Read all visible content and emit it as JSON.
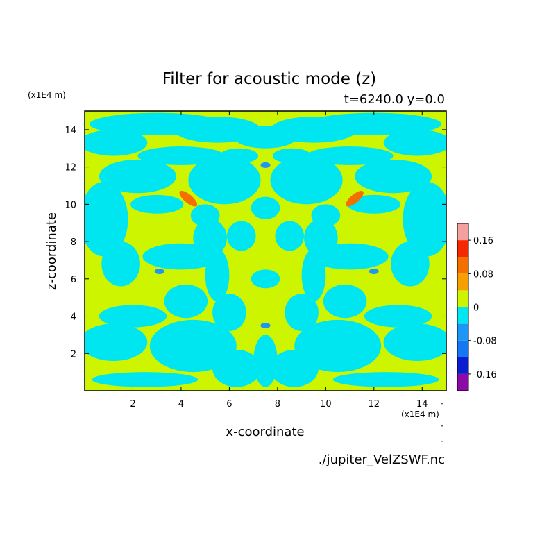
{
  "chart_data": {
    "type": "heatmap",
    "title": "Filter for acoustic mode (z)",
    "subtitle": "t=6240.0 y=0.0",
    "xlabel": "x-coordinate",
    "ylabel": "z-coordinate",
    "x_unit": "(x1E4 m)",
    "y_unit": "(x1E4 m)",
    "xlim": [
      0,
      15
    ],
    "ylim": [
      0,
      15
    ],
    "x_ticks": [
      "2",
      "4",
      "6",
      "8",
      "10",
      "12",
      "14"
    ],
    "y_ticks": [
      "2",
      "4",
      "6",
      "8",
      "10",
      "12",
      "14"
    ],
    "colorbar": {
      "levels": [
        -0.2,
        -0.16,
        -0.12,
        -0.08,
        -0.04,
        0,
        0.04,
        0.08,
        0.12,
        0.16,
        0.2
      ],
      "tick_labels": [
        "0.16",
        "0.08",
        "0",
        "-0.08",
        "-0.16"
      ],
      "colors": [
        "#8c0aa5",
        "#0a1ecf",
        "#1478f5",
        "#1e96f5",
        "#00e6f0",
        "#cdf500",
        "#f5a000",
        "#f56e00",
        "#f52800",
        "#f5a0a0"
      ]
    },
    "field_colors": {
      "background": "#cdf500",
      "negative": "#00e6f0",
      "strong_negative": "#1e96f5",
      "positive": "#f56e00",
      "strong_positive": "#f5a000"
    },
    "notes": {
      "dominant_values": "field mostly between -0.04 and 0.04",
      "local_extremes": [
        {
          "x": 4.3,
          "z": 10.3,
          "value": 0.08
        },
        {
          "x": 11.2,
          "z": 10.3,
          "value": 0.08
        },
        {
          "x": 7.5,
          "z": 12.1,
          "value": -0.08
        },
        {
          "x": 7.5,
          "z": 3.5,
          "value": -0.08
        },
        {
          "x": 3.1,
          "z": 6.4,
          "value": -0.08
        },
        {
          "x": 12.0,
          "z": 6.4,
          "value": -0.08
        }
      ]
    }
  },
  "source_label": "./jupiter_VelZSWF.nc"
}
